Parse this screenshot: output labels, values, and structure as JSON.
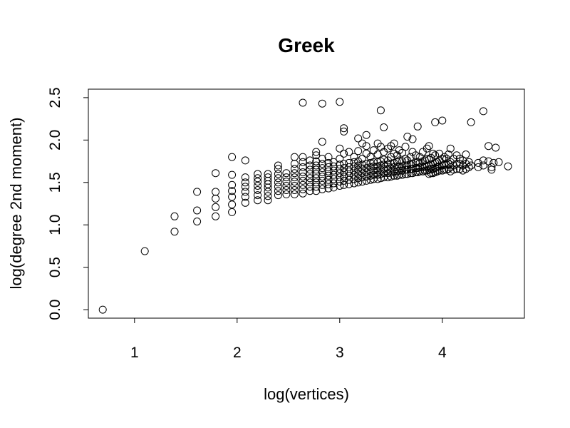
{
  "chart_data": {
    "type": "scatter",
    "title": "Greek",
    "xlabel": "log(vertices)",
    "ylabel": "log(degree 2nd moment)",
    "xlim": [
      0.55,
      4.8
    ],
    "ylim": [
      -0.1,
      2.6
    ],
    "xticks": [
      1,
      2,
      3,
      4
    ],
    "yticks": [
      0.0,
      0.5,
      1.0,
      1.5,
      2.0,
      2.5
    ],
    "xtick_labels": [
      "1",
      "2",
      "3",
      "4"
    ],
    "ytick_labels": [
      "0.0",
      "0.5",
      "1.0",
      "1.5",
      "2.0",
      "2.5"
    ],
    "grid": false,
    "legend": "none",
    "points": [
      [
        0.69,
        0.0
      ],
      [
        1.1,
        0.69
      ],
      [
        1.39,
        0.92
      ],
      [
        1.39,
        1.1
      ],
      [
        1.61,
        1.04
      ],
      [
        1.61,
        1.17
      ],
      [
        1.61,
        1.39
      ],
      [
        1.79,
        1.1
      ],
      [
        1.79,
        1.21
      ],
      [
        1.79,
        1.31
      ],
      [
        1.79,
        1.39
      ],
      [
        1.79,
        1.61
      ],
      [
        1.95,
        1.15
      ],
      [
        1.95,
        1.24
      ],
      [
        1.95,
        1.33
      ],
      [
        1.95,
        1.4
      ],
      [
        1.95,
        1.47
      ],
      [
        1.95,
        1.59
      ],
      [
        1.95,
        1.8
      ],
      [
        2.08,
        1.26
      ],
      [
        2.08,
        1.33
      ],
      [
        2.08,
        1.39
      ],
      [
        2.08,
        1.45
      ],
      [
        2.08,
        1.5
      ],
      [
        2.08,
        1.56
      ],
      [
        2.08,
        1.76
      ],
      [
        2.2,
        1.29
      ],
      [
        2.2,
        1.35
      ],
      [
        2.2,
        1.41
      ],
      [
        2.2,
        1.46
      ],
      [
        2.2,
        1.51
      ],
      [
        2.2,
        1.55
      ],
      [
        2.2,
        1.6
      ],
      [
        2.3,
        1.29
      ],
      [
        2.3,
        1.34
      ],
      [
        2.3,
        1.39
      ],
      [
        2.3,
        1.44
      ],
      [
        2.3,
        1.48
      ],
      [
        2.3,
        1.52
      ],
      [
        2.3,
        1.56
      ],
      [
        2.3,
        1.6
      ],
      [
        2.4,
        1.35
      ],
      [
        2.4,
        1.4
      ],
      [
        2.4,
        1.45
      ],
      [
        2.4,
        1.5
      ],
      [
        2.4,
        1.55
      ],
      [
        2.4,
        1.6
      ],
      [
        2.4,
        1.66
      ],
      [
        2.4,
        1.7
      ],
      [
        2.48,
        1.36
      ],
      [
        2.48,
        1.41
      ],
      [
        2.48,
        1.46
      ],
      [
        2.48,
        1.51
      ],
      [
        2.48,
        1.56
      ],
      [
        2.48,
        1.61
      ],
      [
        2.56,
        1.36
      ],
      [
        2.56,
        1.41
      ],
      [
        2.56,
        1.46
      ],
      [
        2.56,
        1.51
      ],
      [
        2.56,
        1.56
      ],
      [
        2.56,
        1.61
      ],
      [
        2.56,
        1.66
      ],
      [
        2.56,
        1.72
      ],
      [
        2.56,
        1.8
      ],
      [
        2.64,
        1.37
      ],
      [
        2.64,
        1.42
      ],
      [
        2.64,
        1.47
      ],
      [
        2.64,
        1.52
      ],
      [
        2.64,
        1.57
      ],
      [
        2.64,
        1.62
      ],
      [
        2.64,
        1.68
      ],
      [
        2.64,
        1.74
      ],
      [
        2.64,
        1.8
      ],
      [
        2.64,
        2.44
      ],
      [
        2.71,
        1.4
      ],
      [
        2.71,
        1.45
      ],
      [
        2.71,
        1.5
      ],
      [
        2.71,
        1.55
      ],
      [
        2.71,
        1.6
      ],
      [
        2.71,
        1.65
      ],
      [
        2.71,
        1.7
      ],
      [
        2.71,
        1.76
      ],
      [
        2.77,
        1.4
      ],
      [
        2.77,
        1.45
      ],
      [
        2.77,
        1.5
      ],
      [
        2.77,
        1.55
      ],
      [
        2.77,
        1.6
      ],
      [
        2.77,
        1.65
      ],
      [
        2.77,
        1.7
      ],
      [
        2.77,
        1.75
      ],
      [
        2.77,
        1.82
      ],
      [
        2.77,
        1.86
      ],
      [
        2.83,
        1.42
      ],
      [
        2.83,
        1.47
      ],
      [
        2.83,
        1.52
      ],
      [
        2.83,
        1.57
      ],
      [
        2.83,
        1.62
      ],
      [
        2.83,
        1.67
      ],
      [
        2.83,
        1.72
      ],
      [
        2.83,
        1.78
      ],
      [
        2.83,
        1.98
      ],
      [
        2.83,
        2.43
      ],
      [
        2.89,
        1.43
      ],
      [
        2.89,
        1.48
      ],
      [
        2.89,
        1.53
      ],
      [
        2.89,
        1.58
      ],
      [
        2.89,
        1.63
      ],
      [
        2.89,
        1.68
      ],
      [
        2.89,
        1.73
      ],
      [
        2.89,
        1.8
      ],
      [
        2.94,
        1.44
      ],
      [
        2.94,
        1.49
      ],
      [
        2.94,
        1.54
      ],
      [
        2.94,
        1.59
      ],
      [
        2.94,
        1.64
      ],
      [
        2.94,
        1.69
      ],
      [
        2.94,
        1.74
      ],
      [
        3.0,
        1.46
      ],
      [
        3.0,
        1.51
      ],
      [
        3.0,
        1.56
      ],
      [
        3.0,
        1.61
      ],
      [
        3.0,
        1.66
      ],
      [
        3.0,
        1.71
      ],
      [
        3.0,
        1.78
      ],
      [
        3.0,
        1.9
      ],
      [
        3.0,
        2.45
      ],
      [
        3.04,
        1.47
      ],
      [
        3.04,
        1.52
      ],
      [
        3.04,
        1.57
      ],
      [
        3.04,
        1.62
      ],
      [
        3.04,
        1.67
      ],
      [
        3.04,
        1.72
      ],
      [
        3.04,
        1.84
      ],
      [
        3.04,
        2.1
      ],
      [
        3.04,
        2.14
      ],
      [
        3.09,
        1.48
      ],
      [
        3.09,
        1.53
      ],
      [
        3.09,
        1.58
      ],
      [
        3.09,
        1.63
      ],
      [
        3.09,
        1.68
      ],
      [
        3.09,
        1.73
      ],
      [
        3.09,
        1.86
      ],
      [
        3.14,
        1.49
      ],
      [
        3.14,
        1.54
      ],
      [
        3.14,
        1.59
      ],
      [
        3.14,
        1.64
      ],
      [
        3.14,
        1.69
      ],
      [
        3.14,
        1.74
      ],
      [
        3.14,
        1.8
      ],
      [
        3.18,
        1.5
      ],
      [
        3.18,
        1.55
      ],
      [
        3.18,
        1.6
      ],
      [
        3.18,
        1.65
      ],
      [
        3.18,
        1.7
      ],
      [
        3.18,
        1.75
      ],
      [
        3.18,
        1.87
      ],
      [
        3.18,
        2.02
      ],
      [
        3.22,
        1.51
      ],
      [
        3.22,
        1.56
      ],
      [
        3.22,
        1.61
      ],
      [
        3.22,
        1.66
      ],
      [
        3.22,
        1.71
      ],
      [
        3.22,
        1.78
      ],
      [
        3.22,
        1.96
      ],
      [
        3.26,
        1.52
      ],
      [
        3.26,
        1.57
      ],
      [
        3.26,
        1.62
      ],
      [
        3.26,
        1.67
      ],
      [
        3.26,
        1.72
      ],
      [
        3.26,
        1.84
      ],
      [
        3.26,
        1.93
      ],
      [
        3.26,
        2.06
      ],
      [
        3.3,
        1.53
      ],
      [
        3.3,
        1.58
      ],
      [
        3.3,
        1.63
      ],
      [
        3.3,
        1.68
      ],
      [
        3.3,
        1.73
      ],
      [
        3.3,
        1.8
      ],
      [
        3.33,
        1.54
      ],
      [
        3.33,
        1.59
      ],
      [
        3.33,
        1.64
      ],
      [
        3.33,
        1.69
      ],
      [
        3.33,
        1.74
      ],
      [
        3.33,
        1.88
      ],
      [
        3.37,
        1.54
      ],
      [
        3.37,
        1.59
      ],
      [
        3.37,
        1.64
      ],
      [
        3.37,
        1.69
      ],
      [
        3.37,
        1.74
      ],
      [
        3.37,
        1.83
      ],
      [
        3.37,
        1.96
      ],
      [
        3.4,
        1.55
      ],
      [
        3.4,
        1.6
      ],
      [
        3.4,
        1.65
      ],
      [
        3.4,
        1.7
      ],
      [
        3.4,
        1.75
      ],
      [
        3.4,
        1.92
      ],
      [
        3.4,
        2.35
      ],
      [
        3.43,
        1.56
      ],
      [
        3.43,
        1.61
      ],
      [
        3.43,
        1.66
      ],
      [
        3.43,
        1.71
      ],
      [
        3.43,
        1.77
      ],
      [
        3.43,
        1.86
      ],
      [
        3.43,
        2.15
      ],
      [
        3.47,
        1.56
      ],
      [
        3.47,
        1.61
      ],
      [
        3.47,
        1.66
      ],
      [
        3.47,
        1.71
      ],
      [
        3.47,
        1.76
      ],
      [
        3.47,
        1.9
      ],
      [
        3.5,
        1.57
      ],
      [
        3.5,
        1.62
      ],
      [
        3.5,
        1.67
      ],
      [
        3.5,
        1.72
      ],
      [
        3.5,
        1.8
      ],
      [
        3.5,
        1.93
      ],
      [
        3.53,
        1.58
      ],
      [
        3.53,
        1.63
      ],
      [
        3.53,
        1.68
      ],
      [
        3.53,
        1.73
      ],
      [
        3.53,
        1.84
      ],
      [
        3.53,
        1.96
      ],
      [
        3.56,
        1.58
      ],
      [
        3.56,
        1.63
      ],
      [
        3.56,
        1.68
      ],
      [
        3.56,
        1.74
      ],
      [
        3.56,
        1.82
      ],
      [
        3.58,
        1.59
      ],
      [
        3.58,
        1.64
      ],
      [
        3.58,
        1.69
      ],
      [
        3.58,
        1.76
      ],
      [
        3.58,
        1.88
      ],
      [
        3.61,
        1.59
      ],
      [
        3.61,
        1.64
      ],
      [
        3.61,
        1.69
      ],
      [
        3.61,
        1.75
      ],
      [
        3.61,
        1.85
      ],
      [
        3.64,
        1.6
      ],
      [
        3.64,
        1.65
      ],
      [
        3.64,
        1.7
      ],
      [
        3.64,
        1.78
      ],
      [
        3.64,
        1.92
      ],
      [
        3.66,
        1.6
      ],
      [
        3.66,
        1.65
      ],
      [
        3.66,
        1.7
      ],
      [
        3.66,
        1.76
      ],
      [
        3.66,
        2.04
      ],
      [
        3.69,
        1.61
      ],
      [
        3.69,
        1.66
      ],
      [
        3.69,
        1.71
      ],
      [
        3.69,
        1.8
      ],
      [
        3.71,
        1.61
      ],
      [
        3.71,
        1.66
      ],
      [
        3.71,
        1.72
      ],
      [
        3.71,
        1.86
      ],
      [
        3.71,
        2.01
      ],
      [
        3.74,
        1.62
      ],
      [
        3.74,
        1.67
      ],
      [
        3.74,
        1.73
      ],
      [
        3.74,
        1.82
      ],
      [
        3.76,
        1.62
      ],
      [
        3.76,
        1.67
      ],
      [
        3.76,
        1.74
      ],
      [
        3.76,
        2.16
      ],
      [
        3.78,
        1.63
      ],
      [
        3.78,
        1.68
      ],
      [
        3.78,
        1.73
      ],
      [
        3.78,
        1.8
      ],
      [
        3.81,
        1.63
      ],
      [
        3.81,
        1.68
      ],
      [
        3.81,
        1.75
      ],
      [
        3.81,
        1.86
      ],
      [
        3.83,
        1.64
      ],
      [
        3.83,
        1.69
      ],
      [
        3.83,
        1.76
      ],
      [
        3.85,
        1.64
      ],
      [
        3.85,
        1.69
      ],
      [
        3.85,
        1.78
      ],
      [
        3.85,
        1.9
      ],
      [
        3.87,
        1.6
      ],
      [
        3.87,
        1.65
      ],
      [
        3.87,
        1.7
      ],
      [
        3.87,
        1.77
      ],
      [
        3.87,
        1.93
      ],
      [
        3.89,
        1.61
      ],
      [
        3.89,
        1.66
      ],
      [
        3.89,
        1.71
      ],
      [
        3.89,
        1.79
      ],
      [
        3.91,
        1.61
      ],
      [
        3.91,
        1.66
      ],
      [
        3.91,
        1.72
      ],
      [
        3.91,
        1.84
      ],
      [
        3.93,
        1.62
      ],
      [
        3.93,
        1.67
      ],
      [
        3.93,
        1.73
      ],
      [
        3.93,
        1.82
      ],
      [
        3.93,
        2.21
      ],
      [
        3.95,
        1.63
      ],
      [
        3.95,
        1.68
      ],
      [
        3.95,
        1.74
      ],
      [
        3.97,
        1.64
      ],
      [
        3.97,
        1.69
      ],
      [
        3.97,
        1.76
      ],
      [
        3.97,
        1.84
      ],
      [
        4.0,
        1.64
      ],
      [
        4.0,
        1.7
      ],
      [
        4.0,
        1.78
      ],
      [
        4.0,
        2.23
      ],
      [
        4.02,
        1.65
      ],
      [
        4.02,
        1.71
      ],
      [
        4.02,
        1.8
      ],
      [
        4.04,
        1.65
      ],
      [
        4.04,
        1.71
      ],
      [
        4.04,
        1.78
      ],
      [
        4.06,
        1.66
      ],
      [
        4.06,
        1.72
      ],
      [
        4.06,
        1.83
      ],
      [
        4.08,
        1.63
      ],
      [
        4.08,
        1.68
      ],
      [
        4.08,
        1.74
      ],
      [
        4.08,
        1.9
      ],
      [
        4.11,
        1.65
      ],
      [
        4.11,
        1.7
      ],
      [
        4.11,
        1.78
      ],
      [
        4.14,
        1.66
      ],
      [
        4.14,
        1.72
      ],
      [
        4.14,
        1.82
      ],
      [
        4.17,
        1.66
      ],
      [
        4.17,
        1.72
      ],
      [
        4.17,
        1.78
      ],
      [
        4.2,
        1.64
      ],
      [
        4.2,
        1.7
      ],
      [
        4.2,
        1.76
      ],
      [
        4.23,
        1.66
      ],
      [
        4.23,
        1.72
      ],
      [
        4.23,
        1.83
      ],
      [
        4.26,
        1.68
      ],
      [
        4.26,
        1.74
      ],
      [
        4.28,
        1.7
      ],
      [
        4.28,
        2.21
      ],
      [
        4.35,
        1.68
      ],
      [
        4.35,
        1.73
      ],
      [
        4.4,
        1.7
      ],
      [
        4.4,
        1.76
      ],
      [
        4.4,
        2.34
      ],
      [
        4.45,
        1.75
      ],
      [
        4.45,
        1.93
      ],
      [
        4.48,
        1.65
      ],
      [
        4.48,
        1.68
      ],
      [
        4.5,
        1.73
      ],
      [
        4.52,
        1.91
      ],
      [
        4.55,
        1.74
      ],
      [
        4.64,
        1.69
      ]
    ]
  }
}
